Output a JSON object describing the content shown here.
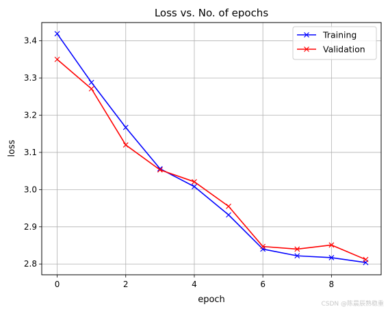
{
  "chart_data": {
    "type": "line",
    "title": "Loss vs. No. of epochs",
    "xlabel": "epoch",
    "ylabel": "loss",
    "xlim": [
      -0.45,
      9.45
    ],
    "ylim": [
      2.771,
      3.449
    ],
    "xticks": [
      0,
      2,
      4,
      6,
      8
    ],
    "xtick_labels": [
      "0",
      "2",
      "4",
      "6",
      "8"
    ],
    "yticks": [
      2.8,
      2.9,
      3.0,
      3.1,
      3.2,
      3.3,
      3.4
    ],
    "ytick_labels": [
      "2.8",
      "2.9",
      "3.0",
      "3.1",
      "3.2",
      "3.3",
      "3.4"
    ],
    "grid": true,
    "legend_position": "top-right",
    "x": [
      0,
      1,
      2,
      3,
      4,
      5,
      6,
      7,
      8,
      9
    ],
    "series": [
      {
        "name": "Training",
        "color": "#0000ff",
        "marker": "x",
        "values": [
          3.419,
          3.288,
          3.167,
          3.056,
          3.008,
          2.932,
          2.84,
          2.822,
          2.817,
          2.804
        ]
      },
      {
        "name": "Validation",
        "color": "#ff0000",
        "marker": "x",
        "values": [
          3.35,
          3.271,
          3.12,
          3.053,
          3.021,
          2.955,
          2.847,
          2.84,
          2.851,
          2.812
        ]
      }
    ]
  },
  "watermark": "CSDN @陈晨辰熟稳重"
}
